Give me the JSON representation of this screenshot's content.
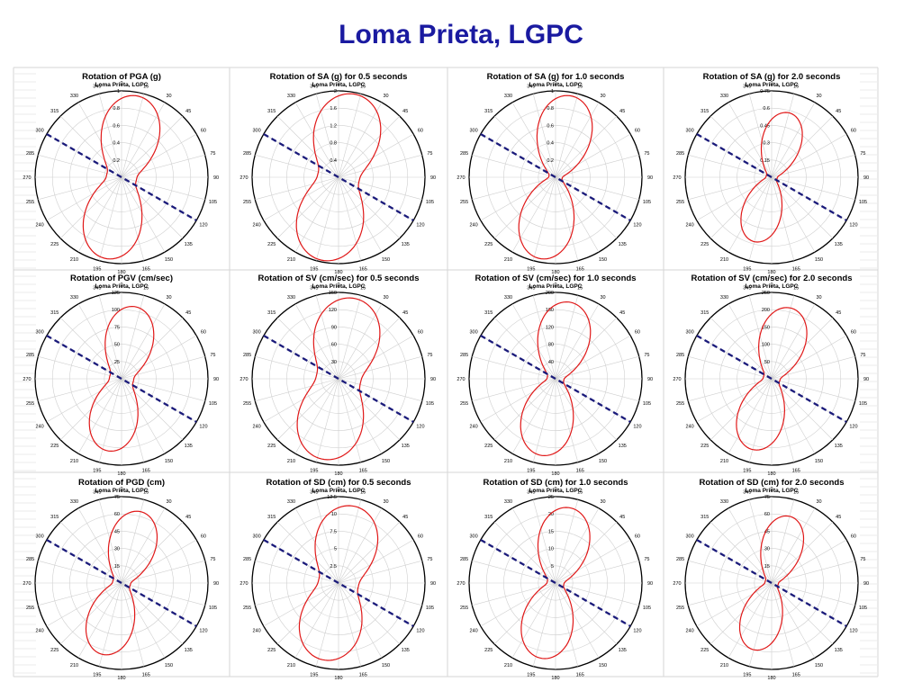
{
  "page_title": "Loma Prieta, LGPC",
  "colors": {
    "title": "#1a1aa0",
    "trace": "#e01818",
    "fault_line": "#1a1a7a",
    "grid": "#cfcfcf"
  },
  "chart_data": [
    {
      "type": "polar",
      "title": "Rotation of PGA (g)",
      "subtitle": "Loma Prieta, LGPC",
      "radial_ticks": [
        "0.2",
        "0.4",
        "0.6",
        "0.8",
        "1"
      ],
      "rmax": 1.0,
      "peak": 0.93,
      "peak_az": 10,
      "waist": 0.18,
      "waist_az": 110,
      "shape": 3,
      "dash_az": 300,
      "angle_labels": [
        "0",
        "15",
        "30",
        "45",
        "60",
        "75",
        "90",
        "105",
        "120",
        "135",
        "150",
        "165",
        "180",
        "195",
        "210",
        "225",
        "240",
        "255",
        "270",
        "285",
        "300",
        "315",
        "330",
        "345"
      ]
    },
    {
      "type": "polar",
      "title": "Rotation of SA (g) for 0.5 seconds",
      "subtitle": "Loma Prieta, LGPC",
      "radial_ticks": [
        "0.4",
        "0.8",
        "1.2",
        "1.6",
        "2"
      ],
      "rmax": 2.0,
      "peak": 1.9,
      "peak_az": 10,
      "waist": 0.5,
      "waist_az": 100,
      "shape": 2.5,
      "dash_az": 300,
      "angle_labels": [
        "0",
        "15",
        "30",
        "45",
        "60",
        "75",
        "90",
        "105",
        "120",
        "135",
        "150",
        "165",
        "180",
        "195",
        "210",
        "225",
        "240",
        "255",
        "270",
        "285",
        "300",
        "315",
        "330",
        "345"
      ]
    },
    {
      "type": "polar",
      "title": "Rotation of SA (g) for 1.0 seconds",
      "subtitle": "Loma Prieta, LGPC",
      "radial_ticks": [
        "0.2",
        "0.4",
        "0.6",
        "0.8",
        "1"
      ],
      "rmax": 1.0,
      "peak": 0.93,
      "peak_az": 10,
      "waist": 0.08,
      "waist_az": 110,
      "shape": 3,
      "dash_az": 300,
      "angle_labels": [
        "0",
        "15",
        "30",
        "45",
        "60",
        "75",
        "90",
        "105",
        "120",
        "135",
        "150",
        "165",
        "180",
        "195",
        "210",
        "225",
        "240",
        "255",
        "270",
        "285",
        "300",
        "315",
        "330",
        "345"
      ]
    },
    {
      "type": "polar",
      "title": "Rotation of SA (g) for 2.0 seconds",
      "subtitle": "Loma Prieta, LGPC",
      "radial_ticks": [
        "0.15",
        "0.3",
        "0.45",
        "0.6",
        "0.75"
      ],
      "rmax": 0.75,
      "peak": 0.56,
      "peak_az": 15,
      "waist": 0.05,
      "waist_az": 110,
      "shape": 4,
      "dash_az": 300,
      "angle_labels": [
        "0",
        "15",
        "30",
        "45",
        "60",
        "75",
        "90",
        "105",
        "120",
        "135",
        "150",
        "165",
        "180",
        "195",
        "210",
        "225",
        "240",
        "255",
        "270",
        "285",
        "300",
        "315",
        "330",
        "345"
      ]
    },
    {
      "type": "polar",
      "title": "Rotation of PGV (cm/sec)",
      "subtitle": "Loma Prieta, LGPC",
      "radial_ticks": [
        "25",
        "50",
        "75",
        "100",
        "125"
      ],
      "rmax": 125,
      "peak": 103,
      "peak_az": 10,
      "waist": 18,
      "waist_az": 110,
      "shape": 3.5,
      "dash_az": 300,
      "angle_labels": [
        "0",
        "15",
        "30",
        "45",
        "60",
        "75",
        "90",
        "105",
        "120",
        "135",
        "150",
        "165",
        "180",
        "195",
        "210",
        "225",
        "240",
        "255",
        "270",
        "285",
        "300",
        "315",
        "330",
        "345"
      ]
    },
    {
      "type": "polar",
      "title": "Rotation of SV (cm/sec) for 0.5 seconds",
      "subtitle": "Loma Prieta, LGPC",
      "radial_ticks": [
        "30",
        "60",
        "90",
        "120",
        "150"
      ],
      "rmax": 150,
      "peak": 138,
      "peak_az": 10,
      "waist": 40,
      "waist_az": 100,
      "shape": 2.5,
      "dash_az": 300,
      "angle_labels": [
        "0",
        "15",
        "30",
        "45",
        "60",
        "75",
        "90",
        "105",
        "120",
        "135",
        "150",
        "165",
        "180",
        "195",
        "210",
        "225",
        "240",
        "255",
        "270",
        "285",
        "300",
        "315",
        "330",
        "345"
      ]
    },
    {
      "type": "polar",
      "title": "Rotation of SV (cm/sec) for 1.0 seconds",
      "subtitle": "Loma Prieta, LGPC",
      "radial_ticks": [
        "40",
        "80",
        "120",
        "160",
        "200"
      ],
      "rmax": 200,
      "peak": 175,
      "peak_az": 10,
      "waist": 20,
      "waist_az": 110,
      "shape": 3,
      "dash_az": 300,
      "angle_labels": [
        "0",
        "15",
        "30",
        "45",
        "60",
        "75",
        "90",
        "105",
        "120",
        "135",
        "150",
        "165",
        "180",
        "195",
        "210",
        "225",
        "240",
        "255",
        "270",
        "285",
        "300",
        "315",
        "330",
        "345"
      ]
    },
    {
      "type": "polar",
      "title": "Rotation of SV (cm/sec) for 2.0 seconds",
      "subtitle": "Loma Prieta, LGPC",
      "radial_ticks": [
        "50",
        "100",
        "150",
        "200",
        "250"
      ],
      "rmax": 250,
      "peak": 205,
      "peak_az": 15,
      "waist": 25,
      "waist_az": 110,
      "shape": 3.5,
      "dash_az": 300,
      "angle_labels": [
        "0",
        "15",
        "30",
        "45",
        "60",
        "75",
        "90",
        "105",
        "120",
        "135",
        "150",
        "165",
        "180",
        "195",
        "210",
        "225",
        "240",
        "255",
        "270",
        "285",
        "300",
        "315",
        "330",
        "345"
      ]
    },
    {
      "type": "polar",
      "title": "Rotation of PGD (cm)",
      "subtitle": "Loma Prieta, LGPC",
      "radial_ticks": [
        "15",
        "30",
        "45",
        "60",
        "75"
      ],
      "rmax": 75,
      "peak": 62,
      "peak_az": 15,
      "waist": 8,
      "waist_az": 110,
      "shape": 3.5,
      "dash_az": 300,
      "angle_labels": [
        "0",
        "15",
        "30",
        "45",
        "60",
        "75",
        "90",
        "105",
        "120",
        "135",
        "150",
        "165",
        "180",
        "195",
        "210",
        "225",
        "240",
        "255",
        "270",
        "285",
        "300",
        "315",
        "330",
        "345"
      ]
    },
    {
      "type": "polar",
      "title": "Rotation of SD (cm) for 0.5 seconds",
      "subtitle": "Loma Prieta, LGPC",
      "radial_ticks": [
        "2.5",
        "5",
        "7.5",
        "10",
        "12.5"
      ],
      "rmax": 12.5,
      "peak": 11,
      "peak_az": 10,
      "waist": 3,
      "waist_az": 100,
      "shape": 2.5,
      "dash_az": 300,
      "angle_labels": [
        "0",
        "15",
        "30",
        "45",
        "60",
        "75",
        "90",
        "105",
        "120",
        "135",
        "150",
        "165",
        "180",
        "195",
        "210",
        "225",
        "240",
        "255",
        "270",
        "285",
        "300",
        "315",
        "330",
        "345"
      ]
    },
    {
      "type": "polar",
      "title": "Rotation of SD (cm) for 1.0 seconds",
      "subtitle": "Loma Prieta, LGPC",
      "radial_ticks": [
        "5",
        "10",
        "15",
        "20",
        "25"
      ],
      "rmax": 25,
      "peak": 21.5,
      "peak_az": 10,
      "waist": 2.5,
      "waist_az": 110,
      "shape": 3,
      "dash_az": 300,
      "angle_labels": [
        "0",
        "15",
        "30",
        "45",
        "60",
        "75",
        "90",
        "105",
        "120",
        "135",
        "150",
        "165",
        "180",
        "195",
        "210",
        "225",
        "240",
        "255",
        "270",
        "285",
        "300",
        "315",
        "330",
        "345"
      ]
    },
    {
      "type": "polar",
      "title": "Rotation of SD (cm) for 2.0 seconds",
      "subtitle": "Loma Prieta, LGPC",
      "radial_ticks": [
        "15",
        "30",
        "45",
        "60",
        "75"
      ],
      "rmax": 75,
      "peak": 58,
      "peak_az": 15,
      "waist": 6,
      "waist_az": 110,
      "shape": 4,
      "dash_az": 300,
      "angle_labels": [
        "0",
        "15",
        "30",
        "45",
        "60",
        "75",
        "90",
        "105",
        "120",
        "135",
        "150",
        "165",
        "180",
        "195",
        "210",
        "225",
        "240",
        "255",
        "270",
        "285",
        "300",
        "315",
        "330",
        "345"
      ]
    }
  ]
}
